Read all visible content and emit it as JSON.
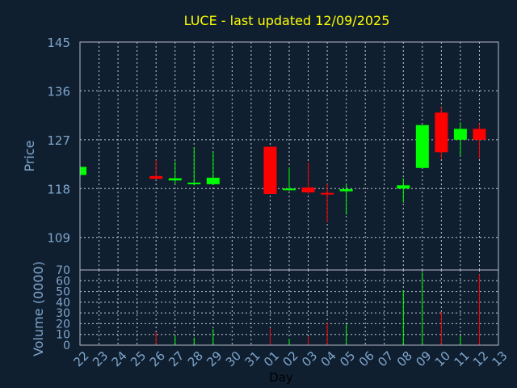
{
  "colors": {
    "background": "#0f1f30",
    "plot_bg": "#0f1f30",
    "border": "#b8b8c8",
    "grid": "#c8c8d0",
    "title": "#ffff00",
    "axis_text": "#7fa6cc",
    "up": "#00ff00",
    "down": "#ff0000"
  },
  "chart_data": [
    {
      "type": "candlestick",
      "title": "LUCE - last updated 12/09/2025",
      "ylabel": "Price",
      "ylim": [
        103,
        145
      ],
      "yticks": [
        109,
        118,
        127,
        136,
        145
      ],
      "grid": true,
      "categories": [
        "22",
        "23",
        "24",
        "25",
        "26",
        "27",
        "28",
        "29",
        "30",
        "31",
        "01",
        "02",
        "03",
        "04",
        "05",
        "06",
        "07",
        "08",
        "09",
        "10",
        "11",
        "12",
        "13"
      ],
      "candles": [
        {
          "day": "22",
          "open": 120.5,
          "close": 122.0,
          "high": 122.0,
          "low": 120.5
        },
        {
          "day": "26",
          "open": 120.3,
          "close": 119.8,
          "high": 123.3,
          "low": 119.8
        },
        {
          "day": "27",
          "open": 119.5,
          "close": 119.9,
          "high": 123.0,
          "low": 118.8
        },
        {
          "day": "28",
          "open": 118.9,
          "close": 119.1,
          "high": 125.6,
          "low": 118.6
        },
        {
          "day": "29",
          "open": 118.8,
          "close": 120.0,
          "high": 124.8,
          "low": 118.7
        },
        {
          "day": "01",
          "open": 125.7,
          "close": 117.0,
          "high": 125.7,
          "low": 117.0
        },
        {
          "day": "02",
          "open": 117.8,
          "close": 118.0,
          "high": 121.9,
          "low": 117.6
        },
        {
          "day": "03",
          "open": 118.2,
          "close": 117.3,
          "high": 122.8,
          "low": 117.0
        },
        {
          "day": "04",
          "open": 117.2,
          "close": 116.9,
          "high": 118.8,
          "low": 111.8
        },
        {
          "day": "05",
          "open": 117.5,
          "close": 117.9,
          "high": 118.8,
          "low": 113.2
        },
        {
          "day": "08",
          "open": 118.0,
          "close": 118.6,
          "high": 119.9,
          "low": 115.4
        },
        {
          "day": "09",
          "open": 121.8,
          "close": 129.7,
          "high": 129.7,
          "low": 121.8
        },
        {
          "day": "10",
          "open": 132.0,
          "close": 124.7,
          "high": 133.0,
          "low": 123.5
        },
        {
          "day": "11",
          "open": 127.0,
          "close": 129.0,
          "high": 130.2,
          "low": 124.0
        },
        {
          "day": "12",
          "open": 129.0,
          "close": 127.0,
          "high": 130.0,
          "low": 123.5
        }
      ]
    },
    {
      "type": "bar",
      "ylabel": "Volume (0000)",
      "xlabel": "Day",
      "ylim": [
        0,
        70
      ],
      "yticks": [
        0,
        10,
        20,
        30,
        40,
        50,
        60,
        70
      ],
      "categories": [
        "22",
        "23",
        "24",
        "25",
        "26",
        "27",
        "28",
        "29",
        "30",
        "31",
        "01",
        "02",
        "03",
        "04",
        "05",
        "06",
        "07",
        "08",
        "09",
        "10",
        "11",
        "12",
        "13"
      ],
      "values": [
        {
          "day": "26",
          "value": 12,
          "dir": "down"
        },
        {
          "day": "27",
          "value": 9,
          "dir": "up"
        },
        {
          "day": "28",
          "value": 7,
          "dir": "up"
        },
        {
          "day": "29",
          "value": 15,
          "dir": "up"
        },
        {
          "day": "01",
          "value": 16,
          "dir": "down"
        },
        {
          "day": "02",
          "value": 6,
          "dir": "up"
        },
        {
          "day": "03",
          "value": 8,
          "dir": "down"
        },
        {
          "day": "04",
          "value": 21,
          "dir": "down"
        },
        {
          "day": "05",
          "value": 20,
          "dir": "up"
        },
        {
          "day": "08",
          "value": 51,
          "dir": "up"
        },
        {
          "day": "09",
          "value": 68,
          "dir": "up"
        },
        {
          "day": "10",
          "value": 31,
          "dir": "down"
        },
        {
          "day": "11",
          "value": 9,
          "dir": "up"
        },
        {
          "day": "12",
          "value": 66,
          "dir": "down"
        }
      ]
    }
  ]
}
